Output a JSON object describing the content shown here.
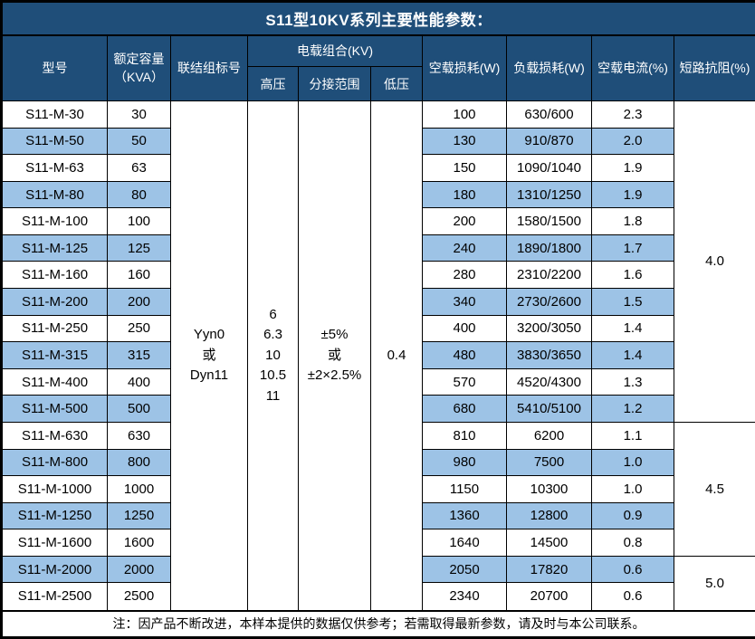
{
  "title": "S11型10KV系列主要性能参数：",
  "header": {
    "model": "型号",
    "capacity": "额定容量\n（KVA）",
    "connection": "联结组标号",
    "voltage_group": "电载组合(KV)",
    "high_voltage": "高压",
    "tap_range": "分接范围",
    "low_voltage": "低压",
    "no_load_loss": "空载损耗(W)",
    "load_loss": "负载损耗(W)",
    "no_load_current": "空载电流(%)",
    "impedance": "短路抗阻(%)"
  },
  "merged": {
    "connection": "Yyn0\n或\nDyn11",
    "high_voltage": "6\n6.3\n10\n10.5\n11",
    "tap_range": "±5%\n或\n±2×2.5%",
    "low_voltage": "0.4"
  },
  "rows": [
    {
      "model": "S11-M-30",
      "capacity": "30",
      "no_load_loss": "100",
      "load_loss": "630/600",
      "no_load_current": "2.3",
      "shaded": false
    },
    {
      "model": "S11-M-50",
      "capacity": "50",
      "no_load_loss": "130",
      "load_loss": "910/870",
      "no_load_current": "2.0",
      "shaded": true
    },
    {
      "model": "S11-M-63",
      "capacity": "63",
      "no_load_loss": "150",
      "load_loss": "1090/1040",
      "no_load_current": "1.9",
      "shaded": false
    },
    {
      "model": "S11-M-80",
      "capacity": "80",
      "no_load_loss": "180",
      "load_loss": "1310/1250",
      "no_load_current": "1.9",
      "shaded": true
    },
    {
      "model": "S11-M-100",
      "capacity": "100",
      "no_load_loss": "200",
      "load_loss": "1580/1500",
      "no_load_current": "1.8",
      "shaded": false
    },
    {
      "model": "S11-M-125",
      "capacity": "125",
      "no_load_loss": "240",
      "load_loss": "1890/1800",
      "no_load_current": "1.7",
      "shaded": true
    },
    {
      "model": "S11-M-160",
      "capacity": "160",
      "no_load_loss": "280",
      "load_loss": "2310/2200",
      "no_load_current": "1.6",
      "shaded": false
    },
    {
      "model": "S11-M-200",
      "capacity": "200",
      "no_load_loss": "340",
      "load_loss": "2730/2600",
      "no_load_current": "1.5",
      "shaded": true
    },
    {
      "model": "S11-M-250",
      "capacity": "250",
      "no_load_loss": "400",
      "load_loss": "3200/3050",
      "no_load_current": "1.4",
      "shaded": false
    },
    {
      "model": "S11-M-315",
      "capacity": "315",
      "no_load_loss": "480",
      "load_loss": "3830/3650",
      "no_load_current": "1.4",
      "shaded": true
    },
    {
      "model": "S11-M-400",
      "capacity": "400",
      "no_load_loss": "570",
      "load_loss": "4520/4300",
      "no_load_current": "1.3",
      "shaded": false
    },
    {
      "model": "S11-M-500",
      "capacity": "500",
      "no_load_loss": "680",
      "load_loss": "5410/5100",
      "no_load_current": "1.2",
      "shaded": true
    },
    {
      "model": "S11-M-630",
      "capacity": "630",
      "no_load_loss": "810",
      "load_loss": "6200",
      "no_load_current": "1.1",
      "shaded": false
    },
    {
      "model": "S11-M-800",
      "capacity": "800",
      "no_load_loss": "980",
      "load_loss": "7500",
      "no_load_current": "1.0",
      "shaded": true
    },
    {
      "model": "S11-M-1000",
      "capacity": "1000",
      "no_load_loss": "1150",
      "load_loss": "10300",
      "no_load_current": "1.0",
      "shaded": false
    },
    {
      "model": "S11-M-1250",
      "capacity": "1250",
      "no_load_loss": "1360",
      "load_loss": "12800",
      "no_load_current": "0.9",
      "shaded": true
    },
    {
      "model": "S11-M-1600",
      "capacity": "1600",
      "no_load_loss": "1640",
      "load_loss": "14500",
      "no_load_current": "0.8",
      "shaded": false
    },
    {
      "model": "S11-M-2000",
      "capacity": "2000",
      "no_load_loss": "2050",
      "load_loss": "17820",
      "no_load_current": "0.6",
      "shaded": true
    },
    {
      "model": "S11-M-2500",
      "capacity": "2500",
      "no_load_loss": "2340",
      "load_loss": "20700",
      "no_load_current": "0.6",
      "shaded": false
    }
  ],
  "impedance_groups": [
    {
      "value": "4.0",
      "start": 0,
      "span": 12
    },
    {
      "value": "4.5",
      "start": 12,
      "span": 5
    },
    {
      "value": "5.0",
      "start": 17,
      "span": 2
    }
  ],
  "note": "注：因产品不断改进，本样本提供的数据仅供参考；若需取得最新参数，请及时与本公司联系。",
  "colors": {
    "header_bg": "#1F4E79",
    "header_text": "#ffffff",
    "row_alt_bg": "#9DC3E6",
    "row_bg": "#ffffff",
    "border": "#000000",
    "body_text": "#000000"
  }
}
